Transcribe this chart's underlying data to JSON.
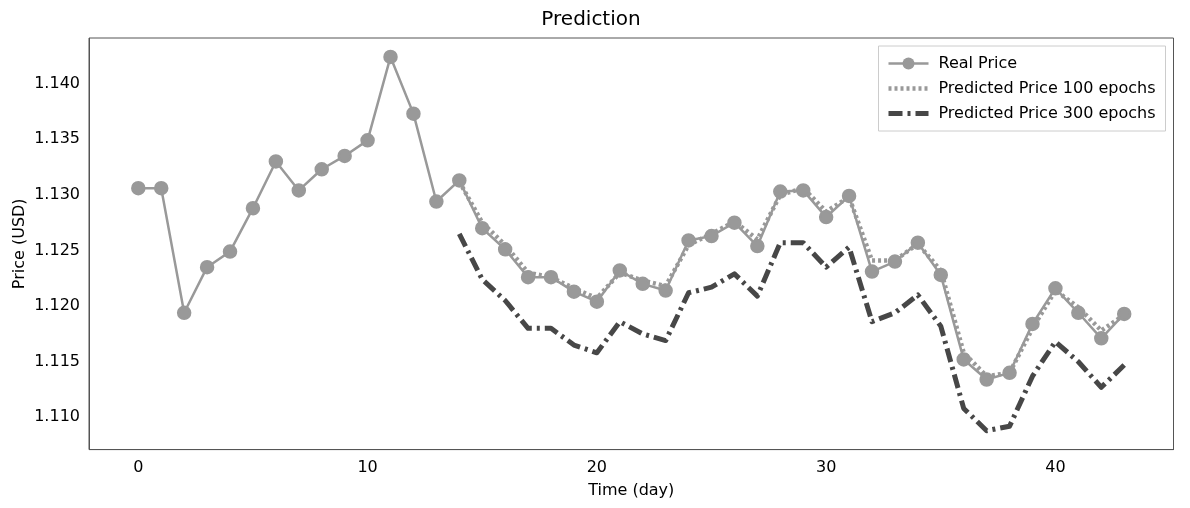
{
  "chart_data": {
    "type": "line",
    "title": "Prediction",
    "xlabel": "Time (day)",
    "ylabel": "Price (USD)",
    "xlim": [
      -2.15,
      45.15
    ],
    "xticks": [
      0,
      10,
      20,
      30,
      40
    ],
    "ylim": [
      1.1071,
      1.1441
    ],
    "yticks": [
      {
        "value": 1.11,
        "label": "1.110"
      },
      {
        "value": 1.115,
        "label": "1.115"
      },
      {
        "value": 1.12,
        "label": "1.120"
      },
      {
        "value": 1.125,
        "label": "1.125"
      },
      {
        "value": 1.13,
        "label": "1.130"
      },
      {
        "value": 1.135,
        "label": "1.135"
      },
      {
        "value": 1.14,
        "label": "1.140"
      }
    ],
    "grid": false,
    "legend": "top right",
    "series": [
      {
        "name": "Real Price",
        "color": "#999999",
        "marker": "circle",
        "line_style": "solid",
        "x": [
          0,
          1,
          2,
          3,
          4,
          5,
          6,
          7,
          8,
          9,
          10,
          11,
          12,
          13,
          14,
          15,
          16,
          17,
          18,
          19,
          20,
          21,
          22,
          23,
          24,
          25,
          26,
          27,
          28,
          29,
          30,
          31,
          32,
          33,
          34,
          35,
          36,
          37,
          38,
          39,
          40,
          41,
          42,
          43
        ],
        "values": [
          1.1306,
          1.1306,
          1.1194,
          1.1235,
          1.1249,
          1.1288,
          1.133,
          1.1304,
          1.1323,
          1.1335,
          1.1349,
          1.1424,
          1.1373,
          1.1294,
          1.1313,
          1.127,
          1.1251,
          1.1226,
          1.1226,
          1.1213,
          1.1204,
          1.1232,
          1.122,
          1.1214,
          1.1259,
          1.1263,
          1.1275,
          1.1254,
          1.1303,
          1.1304,
          1.128,
          1.1299,
          1.1231,
          1.124,
          1.1257,
          1.1228,
          1.1152,
          1.1134,
          1.114,
          1.1184,
          1.1216,
          1.1194,
          1.1171,
          1.1193
        ]
      },
      {
        "name": "Predicted Price 100 epochs",
        "color": "#999999",
        "marker": "none",
        "line_style": "dotted",
        "x": [
          14,
          15,
          16,
          17,
          18,
          19,
          20,
          21,
          22,
          23,
          24,
          25,
          26,
          27,
          28,
          29,
          30,
          31,
          32,
          33,
          34,
          35,
          36,
          37,
          38,
          39,
          40,
          41,
          42,
          43
        ],
        "values": [
          1.1312,
          1.1275,
          1.1255,
          1.123,
          1.1226,
          1.1216,
          1.1207,
          1.123,
          1.1223,
          1.1218,
          1.1255,
          1.1265,
          1.1276,
          1.126,
          1.13,
          1.1306,
          1.1285,
          1.1298,
          1.1241,
          1.1241,
          1.1256,
          1.1232,
          1.1158,
          1.1137,
          1.114,
          1.118,
          1.1214,
          1.1199,
          1.1178,
          1.1192
        ]
      },
      {
        "name": "Predicted Price 300 epochs",
        "color": "#474747",
        "marker": "none",
        "line_style": "dashdot",
        "x": [
          14,
          15,
          16,
          17,
          18,
          19,
          20,
          21,
          22,
          23,
          24,
          25,
          26,
          27,
          28,
          29,
          30,
          31,
          32,
          33,
          34,
          35,
          36,
          37,
          38,
          39,
          40,
          41,
          42,
          43
        ],
        "values": [
          1.1265,
          1.1224,
          1.1205,
          1.118,
          1.118,
          1.1165,
          1.1158,
          1.1186,
          1.1175,
          1.1169,
          1.1212,
          1.1217,
          1.1229,
          1.1209,
          1.1257,
          1.1257,
          1.1235,
          1.1253,
          1.1186,
          1.1194,
          1.121,
          1.1182,
          1.1108,
          1.1088,
          1.1092,
          1.1137,
          1.1168,
          1.115,
          1.1127,
          1.1147
        ]
      }
    ]
  }
}
